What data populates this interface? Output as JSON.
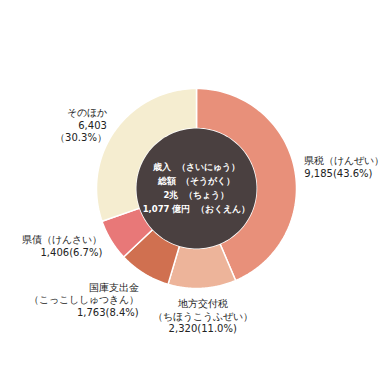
{
  "chart_data": {
    "type": "pie",
    "categories": [
      "県税（けんぜい）",
      "地方交付税\n（ちほうこうふぜい）",
      "国庫支出金\n（こっこししゅつきん）",
      "県債（けんさい）",
      "そのほか"
    ],
    "values": [
      43.6,
      11.0,
      8.4,
      6.7,
      30.3
    ],
    "value_labels": [
      "9,185(43.6%)",
      "2,320(11.0%)",
      "1,763(8.4%)",
      "1,406(6.7%)",
      "6,403\n（30.3%）"
    ],
    "colors": [
      "#E8907A",
      "#EDB49A",
      "#D07050",
      "#E87878",
      "#F5EDD0"
    ],
    "annotations": [
      "歳入  （さいにゅう）",
      "総額  （そうがく）",
      "2兆  （ちょう）",
      "1,077 億円  （おくえん）"
    ],
    "data_labels": true
  }
}
